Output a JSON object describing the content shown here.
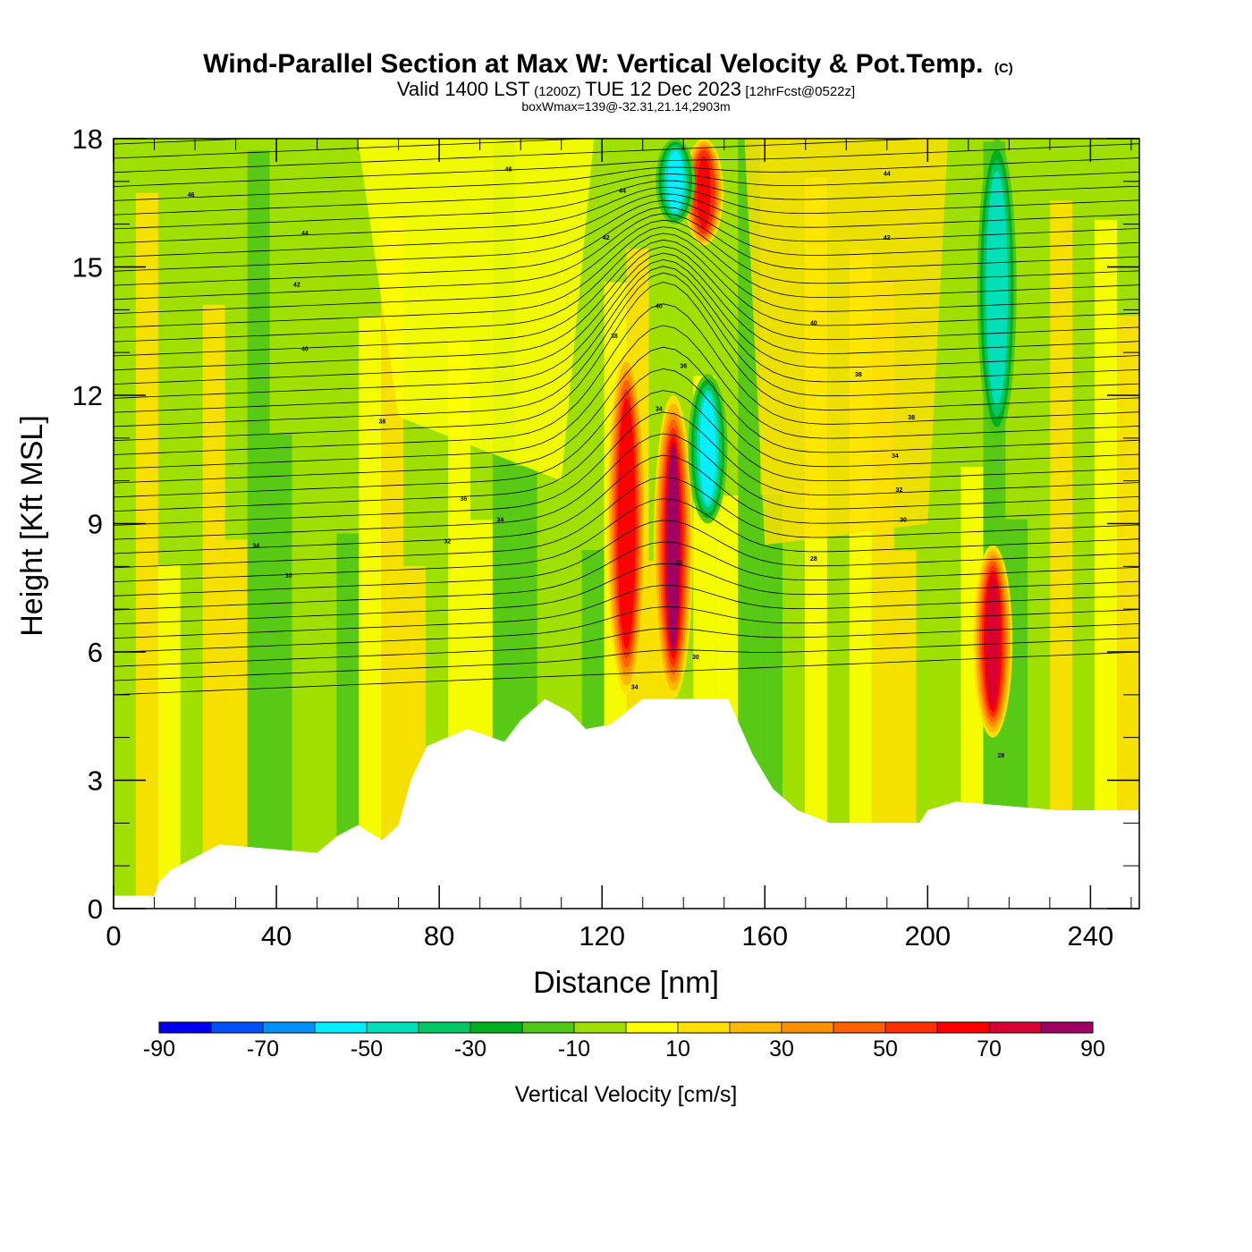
{
  "header": {
    "title": "Wind-Parallel Section at Max W: Vertical Velocity & Pot.Temp.",
    "title_mark": "(C)",
    "valid_prefix": "Valid 1400 LST",
    "valid_utc": "(1200Z)",
    "valid_date": "TUE 12 Dec 2023",
    "forecast": "[12hrFcst@0522z]",
    "box_wmax": "boxWmax=139@-32.31,21.14,2903m"
  },
  "chart_data": {
    "type": "heatmap",
    "xlabel": "Distance [nm]",
    "ylabel": "Height [Kft MSL]",
    "xlim": [
      0,
      252
    ],
    "ylim": [
      0,
      18
    ],
    "x_ticks": [
      0,
      40,
      80,
      120,
      160,
      200,
      240
    ],
    "y_ticks": [
      0,
      3,
      6,
      9,
      12,
      15,
      18
    ],
    "x_tick_labels": [
      "0",
      "40",
      "80",
      "120",
      "160",
      "200",
      "240"
    ],
    "y_tick_labels": [
      "0",
      "3",
      "6",
      "9",
      "12",
      "15",
      "18"
    ],
    "grid": false,
    "colorbar": {
      "title": "Vertical Velocity [cm/s]",
      "bounds": [
        -90,
        -80,
        -70,
        -60,
        -50,
        -40,
        -30,
        -20,
        -10,
        0,
        10,
        20,
        30,
        40,
        50,
        60,
        70,
        80,
        90
      ],
      "tick_labels": [
        "-90",
        "-70",
        "-50",
        "-30",
        "-10",
        "10",
        "30",
        "50",
        "70",
        "90"
      ],
      "colors": [
        "#0000f0",
        "#0050f8",
        "#0090f8",
        "#00f0ff",
        "#00e0b8",
        "#00c864",
        "#00b020",
        "#50c818",
        "#a0e000",
        "#ffff00",
        "#ffe000",
        "#ffb800",
        "#ff9000",
        "#ff6000",
        "#ff3000",
        "#ff0000",
        "#d80030",
        "#a00060"
      ]
    },
    "terrain_kft": [
      [
        0,
        0.3
      ],
      [
        10,
        0.3
      ],
      [
        11,
        0.6
      ],
      [
        14,
        0.9
      ],
      [
        20,
        1.2
      ],
      [
        26,
        1.5
      ],
      [
        50,
        1.3
      ],
      [
        55,
        1.7
      ],
      [
        60,
        1.95
      ],
      [
        66,
        1.6
      ],
      [
        70,
        1.95
      ],
      [
        73,
        3.0
      ],
      [
        77,
        3.8
      ],
      [
        82,
        4.0
      ],
      [
        87,
        4.2
      ],
      [
        96,
        3.9
      ],
      [
        100,
        4.4
      ],
      [
        106,
        4.9
      ],
      [
        112,
        4.6
      ],
      [
        116,
        4.2
      ],
      [
        122,
        4.3
      ],
      [
        130,
        4.9
      ],
      [
        151,
        4.9
      ],
      [
        157,
        3.6
      ],
      [
        162,
        2.8
      ],
      [
        168,
        2.3
      ],
      [
        176,
        2.0
      ],
      [
        198,
        2.0
      ],
      [
        200,
        2.3
      ],
      [
        207,
        2.5
      ],
      [
        232,
        2.3
      ],
      [
        252,
        2.3
      ]
    ],
    "updraft_cores_cm_s": [
      {
        "x": 126,
        "zmin": 5.0,
        "zmax": 13.0,
        "w": 65
      },
      {
        "x": 137.5,
        "zmin": 4.9,
        "zmax": 12.0,
        "w": 80
      },
      {
        "x": 145,
        "zmin": 15.5,
        "zmax": 18,
        "w": 60
      },
      {
        "x": 216,
        "zmin": 4.0,
        "zmax": 8.5,
        "w": 75
      }
    ],
    "downdraft_cores_cm_s": [
      {
        "x": 146,
        "zmin": 9.0,
        "zmax": 12.5,
        "w": -55
      },
      {
        "x": 138,
        "zmin": 16.0,
        "zmax": 18,
        "w": -55
      },
      {
        "x": 217,
        "zmin": 11.0,
        "zmax": 18,
        "w": -50
      }
    ],
    "theta_contour_labels": [
      {
        "text": "46",
        "x": 97,
        "z": 17.3
      },
      {
        "text": "46",
        "x": 19,
        "z": 16.7
      },
      {
        "text": "44",
        "x": 47,
        "z": 15.8
      },
      {
        "text": "44",
        "x": 125,
        "z": 16.8
      },
      {
        "text": "44",
        "x": 190,
        "z": 17.2
      },
      {
        "text": "42",
        "x": 45,
        "z": 14.6
      },
      {
        "text": "42",
        "x": 121,
        "z": 15.7
      },
      {
        "text": "42",
        "x": 190,
        "z": 15.7
      },
      {
        "text": "40",
        "x": 47,
        "z": 13.1
      },
      {
        "text": "40",
        "x": 134,
        "z": 14.1
      },
      {
        "text": "40",
        "x": 172,
        "z": 13.7
      },
      {
        "text": "38",
        "x": 66,
        "z": 11.4
      },
      {
        "text": "38",
        "x": 123,
        "z": 13.4
      },
      {
        "text": "38",
        "x": 183,
        "z": 12.5
      },
      {
        "text": "38",
        "x": 196,
        "z": 11.5
      },
      {
        "text": "36",
        "x": 86,
        "z": 9.6
      },
      {
        "text": "36",
        "x": 140,
        "z": 12.7
      },
      {
        "text": "34",
        "x": 95,
        "z": 9.1
      },
      {
        "text": "34",
        "x": 35,
        "z": 8.5
      },
      {
        "text": "34",
        "x": 134,
        "z": 11.7
      },
      {
        "text": "34",
        "x": 192,
        "z": 10.6
      },
      {
        "text": "32",
        "x": 82,
        "z": 8.6
      },
      {
        "text": "32",
        "x": 193,
        "z": 9.8
      },
      {
        "text": "32",
        "x": 139,
        "z": 8.1
      },
      {
        "text": "30",
        "x": 43,
        "z": 7.8
      },
      {
        "text": "30",
        "x": 194,
        "z": 9.1
      },
      {
        "text": "30",
        "x": 143,
        "z": 5.9
      },
      {
        "text": "28",
        "x": 172,
        "z": 8.2
      },
      {
        "text": "34",
        "x": 128,
        "z": 5.2
      },
      {
        "text": "28",
        "x": 218,
        "z": 3.6
      }
    ]
  }
}
